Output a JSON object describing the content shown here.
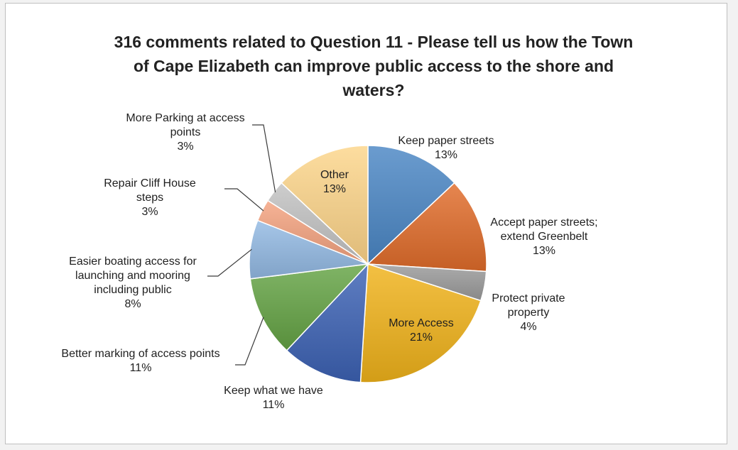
{
  "chart_data": {
    "type": "pie",
    "title": "316 comments related to Question 11 - Please tell us how the Town of Cape Elizabeth can improve public access to the shore and waters?",
    "title_lines": [
      "316 comments related to Question 11 - Please tell us how the Town",
      "of Cape Elizabeth can improve public access to the shore and",
      "waters?"
    ],
    "slices": [
      {
        "label": "Keep paper streets",
        "label_lines": [
          "Keep paper streets"
        ],
        "value": 13,
        "pct": "13%",
        "color": "#4a86c5"
      },
      {
        "label": "Accept paper streets; extend Greenbelt",
        "label_lines": [
          "Accept paper streets;",
          "extend Greenbelt"
        ],
        "value": 13,
        "pct": "13%",
        "color": "#e06c2a"
      },
      {
        "label": "Protect private property",
        "label_lines": [
          "Protect private",
          "property"
        ],
        "value": 4,
        "pct": "4%",
        "color": "#9a9a9a"
      },
      {
        "label": "More Access",
        "label_lines": [
          "More Access"
        ],
        "value": 21,
        "pct": "21%",
        "color": "#f0b21a"
      },
      {
        "label": "Keep what we have",
        "label_lines": [
          "Keep what we have"
        ],
        "value": 11,
        "pct": "11%",
        "color": "#3c62b4"
      },
      {
        "label": "Better marking of access points",
        "label_lines": [
          "Better marking of access points"
        ],
        "value": 11,
        "pct": "11%",
        "color": "#64a344"
      },
      {
        "label": "Easier boating access for launching and mooring including public",
        "label_lines": [
          "Easier boating access for",
          "launching and mooring",
          "including public"
        ],
        "value": 8,
        "pct": "8%",
        "color": "#93b9e3"
      },
      {
        "label": "Repair Cliff House steps",
        "label_lines": [
          "Repair Cliff House",
          "steps"
        ],
        "value": 3,
        "pct": "3%",
        "color": "#f4a27f"
      },
      {
        "label": "More Parking at access points",
        "label_lines": [
          "More Parking at access",
          "points"
        ],
        "value": 3,
        "pct": "3%",
        "color": "#c2c2c2"
      },
      {
        "label": "Other",
        "label_lines": [
          "Other"
        ],
        "value": 13,
        "pct": "13%",
        "color": "#fdd58a"
      }
    ]
  }
}
